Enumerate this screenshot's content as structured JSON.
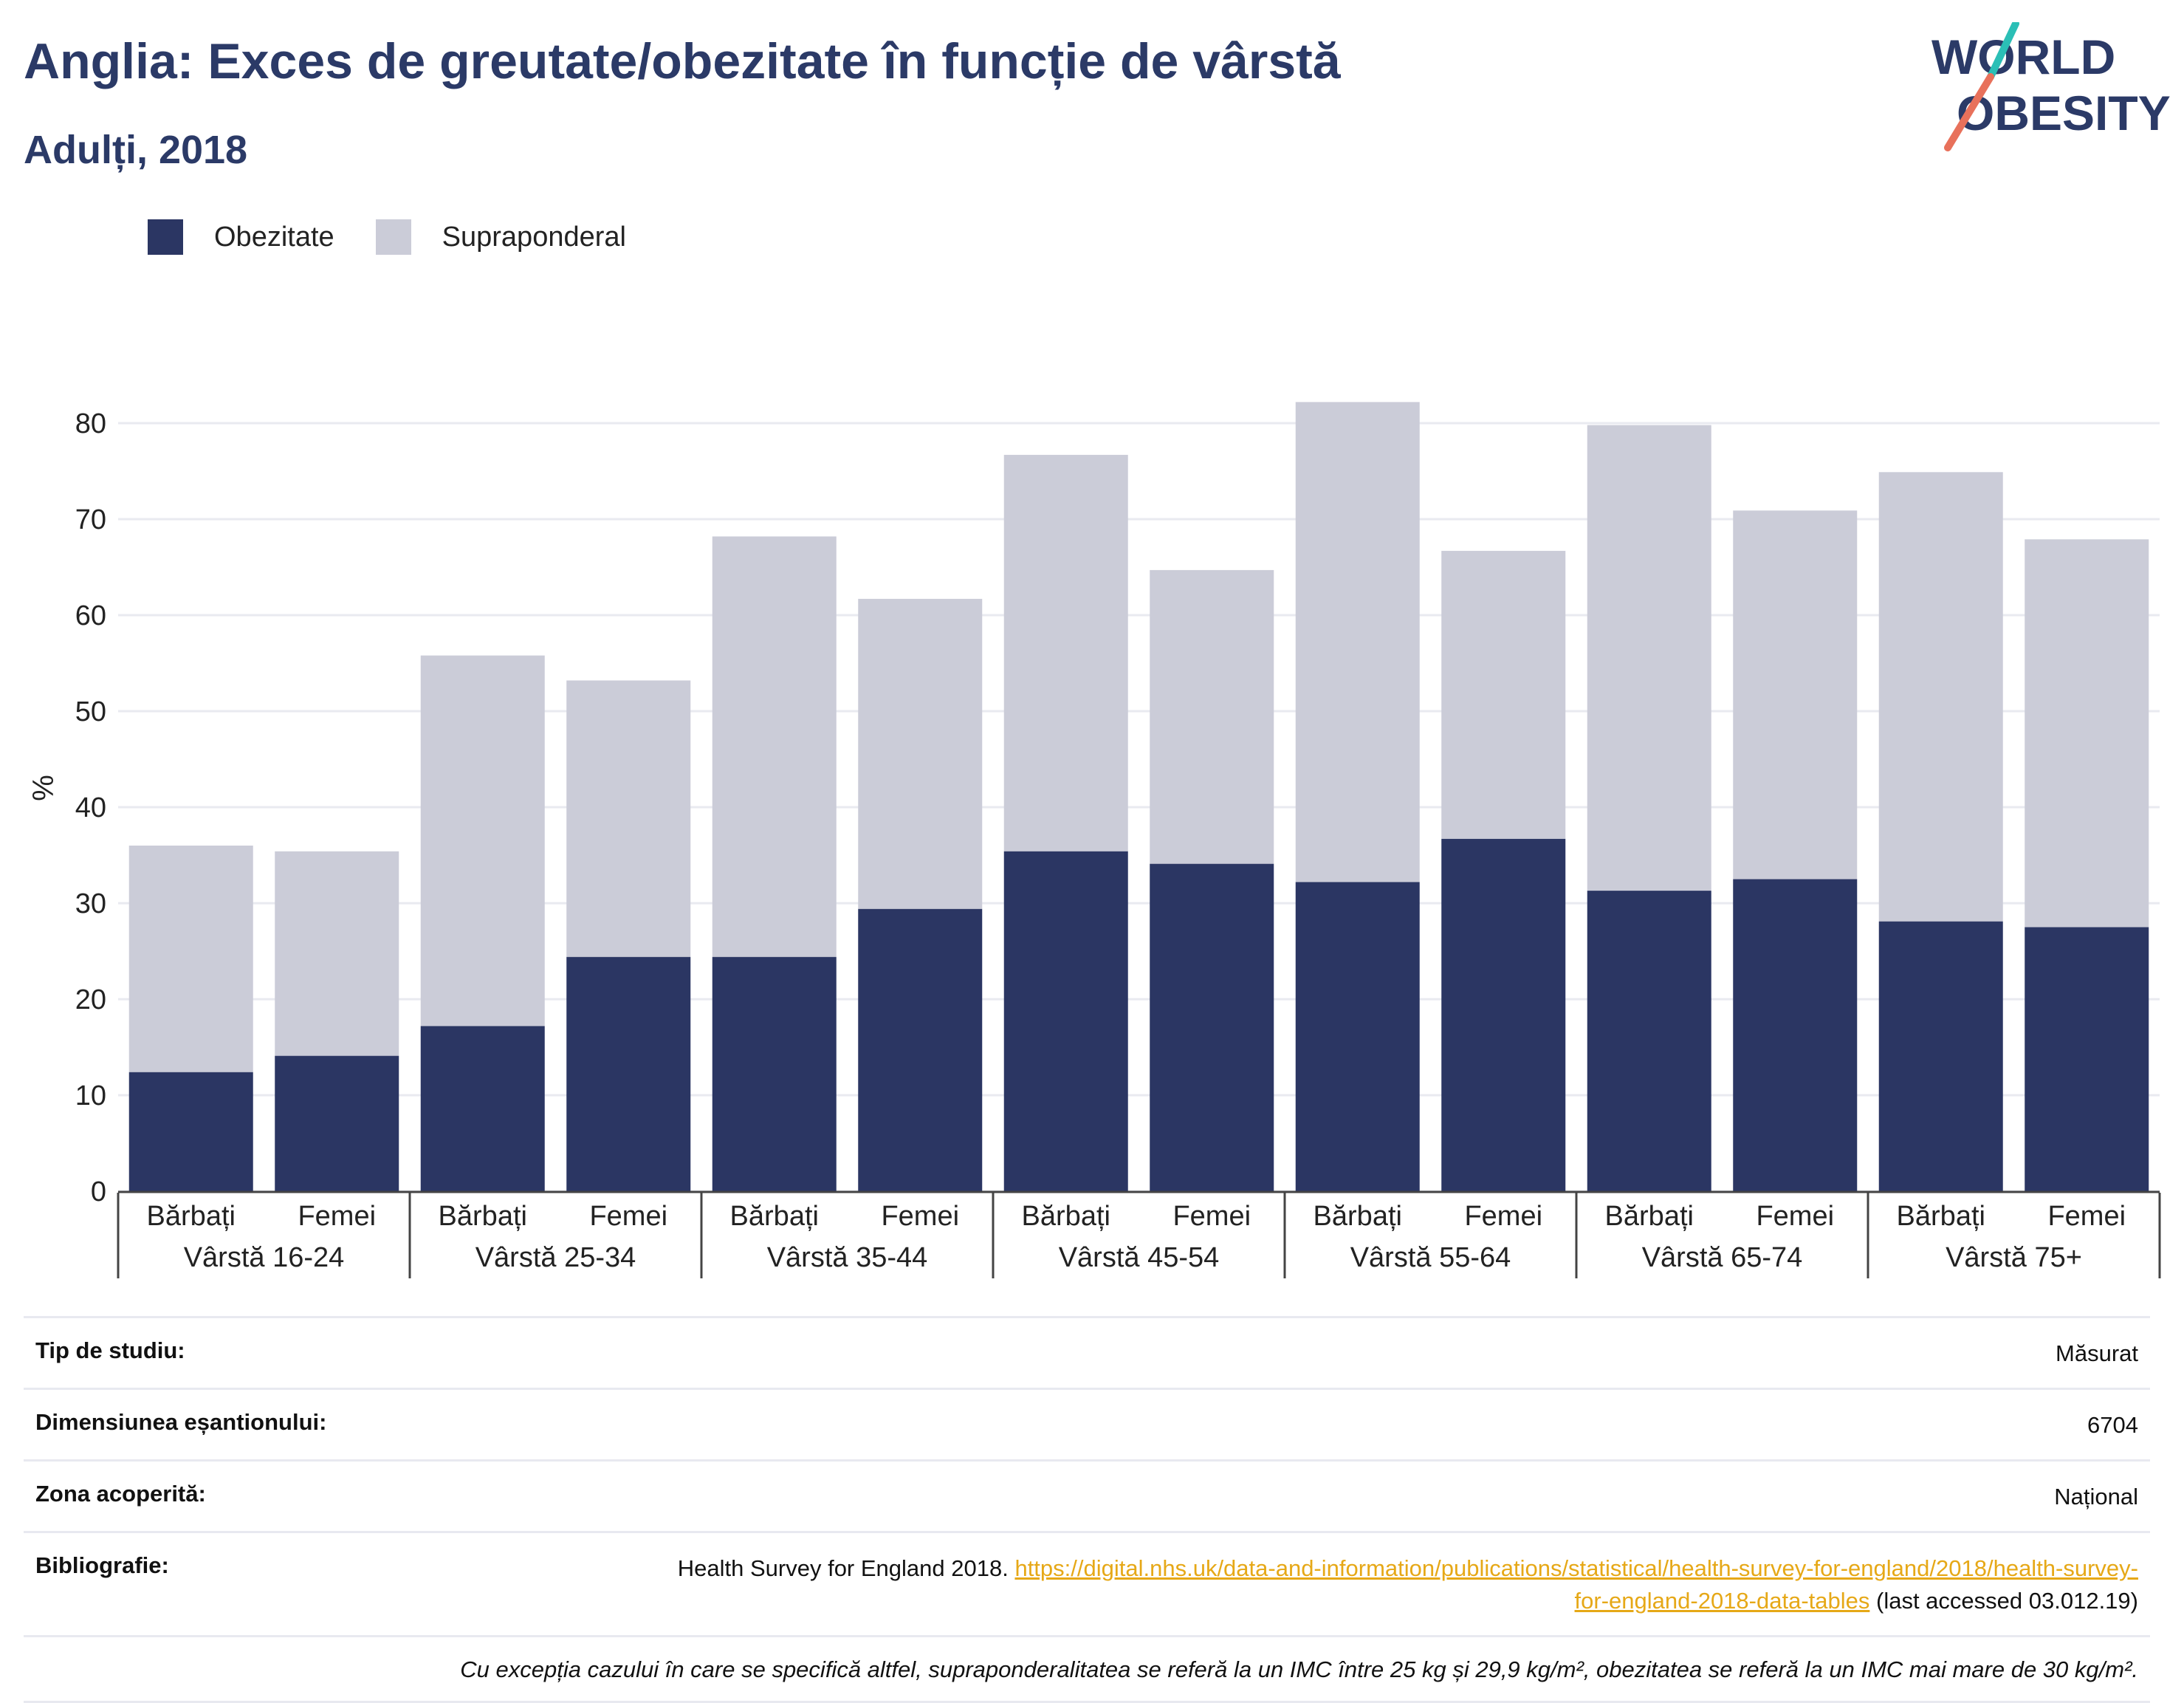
{
  "title": "Anglia: Exces de greutate/obezitate în funcție de vârstă",
  "subtitle": "Adulți, 2018",
  "logo": {
    "line1": "WORLD",
    "line2": "OBESITY",
    "colors": {
      "text": "#2b3a67",
      "slash_top": "#2bbfb6",
      "slash_bottom": "#e8715b"
    }
  },
  "colors": {
    "obesity": "#2b3663",
    "overweight": "#cbccd8",
    "grid": "#e9eaf0",
    "axis": "#444444"
  },
  "legend": [
    {
      "label": "Obezitate",
      "color": "#2b3663"
    },
    {
      "label": "Supraponderal",
      "color": "#cbccd8"
    }
  ],
  "chart_data": {
    "type": "bar",
    "stacked": true,
    "ylabel": "%",
    "ylim": [
      0,
      85
    ],
    "yticks": [
      0,
      10,
      20,
      30,
      40,
      50,
      60,
      70,
      80
    ],
    "grid": true,
    "groups": [
      "Vârstă 16-24",
      "Vârstă 25-34",
      "Vârstă 35-44",
      "Vârstă 45-54",
      "Vârstă 55-64",
      "Vârstă 65-74",
      "Vârstă 75+"
    ],
    "subcategories": [
      "Bărbați",
      "Femei"
    ],
    "series": [
      {
        "name": "Obezitate",
        "values": [
          12.4,
          14.1,
          17.2,
          24.4,
          24.4,
          29.4,
          35.4,
          34.1,
          32.2,
          36.7,
          31.3,
          32.5,
          28.1,
          27.5
        ]
      },
      {
        "name": "Supraponderal",
        "values": [
          23.6,
          21.3,
          38.6,
          28.8,
          43.8,
          32.3,
          41.3,
          30.6,
          50.0,
          30.0,
          48.5,
          38.4,
          46.8,
          40.4
        ]
      }
    ],
    "totals": [
      36.0,
      35.4,
      55.8,
      53.2,
      68.2,
      61.7,
      76.7,
      64.7,
      82.2,
      66.7,
      79.8,
      70.9,
      74.9,
      67.9
    ]
  },
  "info": {
    "rows": [
      {
        "label": "Tip de studiu:",
        "value": "Măsurat"
      },
      {
        "label": "Dimensiunea eșantionului:",
        "value": "6704"
      },
      {
        "label": "Zona acoperită:",
        "value": "Național"
      }
    ],
    "bibliography": {
      "label": "Bibliografie:",
      "text": "Health Survey for England 2018.",
      "link": "https://digital.nhs.uk/data-and-information/publications/statistical/health-survey-for-england/2018/health-survey-for-england-2018-data-tables",
      "suffix": "(last accessed 03.012.19)"
    },
    "note": "Cu excepția cazului în care se specifică altfel, supraponderalitatea se referă la un IMC între 25 kg și 29,9 kg/m², obezitatea se referă la un IMC mai mare de 30 kg/m²."
  }
}
